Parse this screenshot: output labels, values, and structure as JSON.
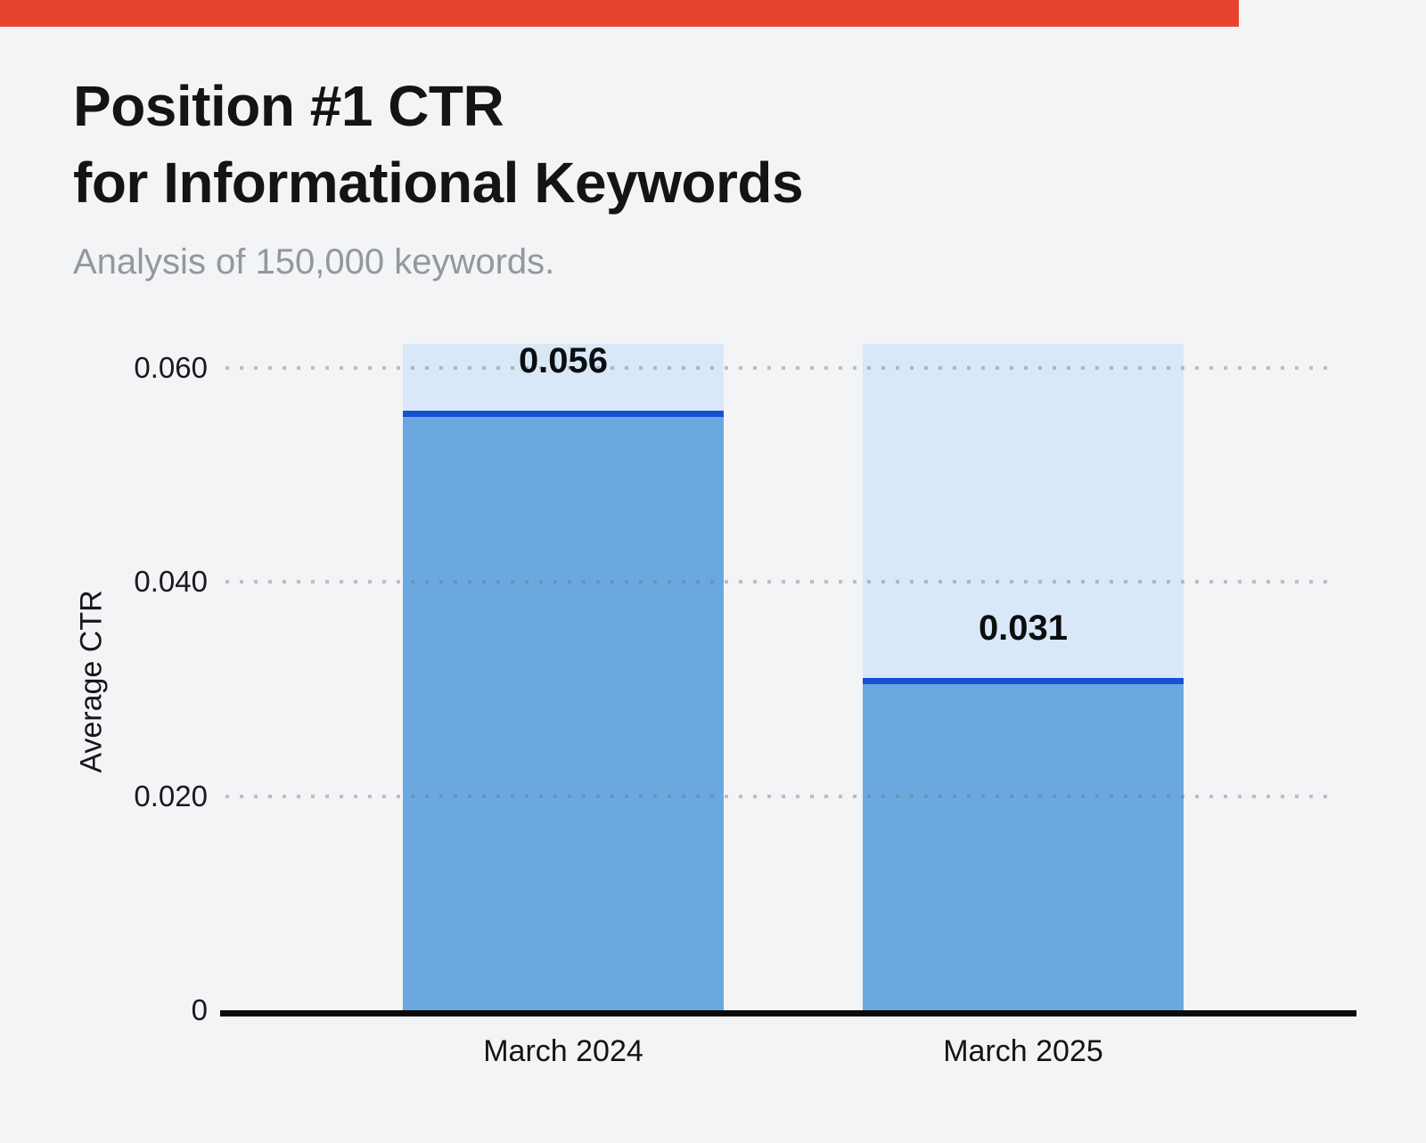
{
  "banner": {
    "color": "#e8432e"
  },
  "header": {
    "title_line1": "Position #1 CTR",
    "title_line2": "for Informational Keywords",
    "subtitle": "Analysis of 150,000 keywords."
  },
  "chart_data": {
    "type": "bar",
    "title": "Position #1 CTR for Informational Keywords",
    "subtitle": "Analysis of 150,000 keywords.",
    "categories": [
      "March 2024",
      "March 2025"
    ],
    "values": [
      0.056,
      0.031
    ],
    "value_labels": [
      "0.056",
      "0.031"
    ],
    "xlabel": "",
    "ylabel": "Average CTR",
    "ylim": [
      0,
      0.062
    ],
    "yticks": [
      {
        "value": 0,
        "label": "0"
      },
      {
        "value": 0.02,
        "label": "0.020"
      },
      {
        "value": 0.04,
        "label": "0.040"
      },
      {
        "value": 0.06,
        "label": "0.060"
      }
    ],
    "grid": "horizontal dotted, drawn over bars",
    "legend": "none",
    "colors": {
      "page_background": "#f3f4f6",
      "bar_fill": "#6ba8df",
      "bar_top_border": "#1551d3",
      "bar_background_column": "#d9e8f8",
      "gridline": "#7a7f86",
      "axis_line": "#0a0a0a",
      "title_text": "#121416",
      "subtitle_text": "#94979c"
    }
  }
}
